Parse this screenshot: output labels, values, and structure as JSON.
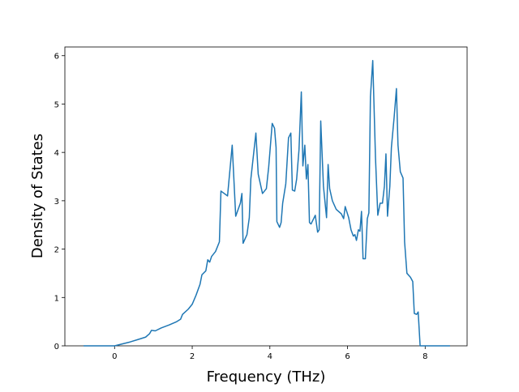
{
  "chart_data": {
    "type": "line",
    "x_label": "Frequency (THz)",
    "y_label": "Density of States",
    "x": [
      -0.8,
      0,
      0.2,
      0.4,
      0.6,
      0.8,
      0.9,
      0.95,
      1.05,
      1.2,
      1.4,
      1.6,
      1.7,
      1.75,
      1.9,
      2.0,
      2.1,
      2.2,
      2.25,
      2.35,
      2.4,
      2.45,
      2.5,
      2.6,
      2.7,
      2.74,
      2.91,
      3.03,
      3.12,
      3.24,
      3.28,
      3.31,
      3.41,
      3.47,
      3.51,
      3.64,
      3.7,
      3.81,
      3.91,
      3.97,
      4.06,
      4.12,
      4.16,
      4.18,
      4.25,
      4.29,
      4.33,
      4.41,
      4.48,
      4.54,
      4.58,
      4.64,
      4.69,
      4.75,
      4.81,
      4.85,
      4.9,
      4.94,
      4.98,
      5.02,
      5.06,
      5.17,
      5.23,
      5.27,
      5.31,
      5.38,
      5.46,
      5.5,
      5.54,
      5.61,
      5.71,
      5.84,
      5.9,
      5.94,
      6.03,
      6.09,
      6.15,
      6.19,
      6.23,
      6.28,
      6.32,
      6.36,
      6.4,
      6.46,
      6.51,
      6.55,
      6.59,
      6.65,
      6.72,
      6.78,
      6.84,
      6.9,
      6.95,
      6.99,
      7.03,
      7.09,
      7.13,
      7.2,
      7.26,
      7.3,
      7.36,
      7.43,
      7.47,
      7.53,
      7.62,
      7.68,
      7.72,
      7.78,
      7.82,
      7.87,
      8.64
    ],
    "values": [
      0,
      0,
      0.04,
      0.08,
      0.13,
      0.18,
      0.25,
      0.32,
      0.31,
      0.37,
      0.43,
      0.5,
      0.55,
      0.65,
      0.76,
      0.86,
      1.05,
      1.27,
      1.47,
      1.55,
      1.78,
      1.73,
      1.85,
      1.95,
      2.15,
      3.2,
      3.1,
      4.15,
      2.68,
      2.95,
      3.15,
      2.12,
      2.3,
      2.65,
      3.45,
      4.4,
      3.55,
      3.15,
      3.25,
      3.7,
      4.6,
      4.5,
      4.1,
      2.57,
      2.45,
      2.55,
      2.95,
      3.35,
      4.3,
      4.4,
      3.22,
      3.2,
      3.45,
      4.05,
      5.25,
      3.72,
      4.15,
      3.45,
      3.75,
      2.55,
      2.52,
      2.7,
      2.35,
      2.4,
      4.65,
      3.3,
      2.65,
      3.75,
      3.25,
      3.0,
      2.82,
      2.73,
      2.63,
      2.88,
      2.65,
      2.4,
      2.27,
      2.3,
      2.18,
      2.4,
      2.37,
      2.78,
      1.8,
      1.8,
      2.63,
      2.75,
      5.15,
      5.9,
      3.9,
      2.7,
      2.95,
      2.95,
      3.3,
      3.97,
      2.68,
      3.3,
      4.1,
      4.72,
      5.32,
      4.15,
      3.6,
      3.47,
      2.15,
      1.5,
      1.42,
      1.33,
      0.67,
      0.65,
      0.7,
      0,
      0
    ],
    "color": "#1f77b4",
    "xlim": [
      -1.28,
      9.08
    ],
    "xticks": [
      0,
      2,
      4,
      6,
      8
    ],
    "ylim": [
      0,
      6.18
    ],
    "yticks": [
      0,
      1,
      2,
      3,
      4,
      5,
      6
    ]
  }
}
